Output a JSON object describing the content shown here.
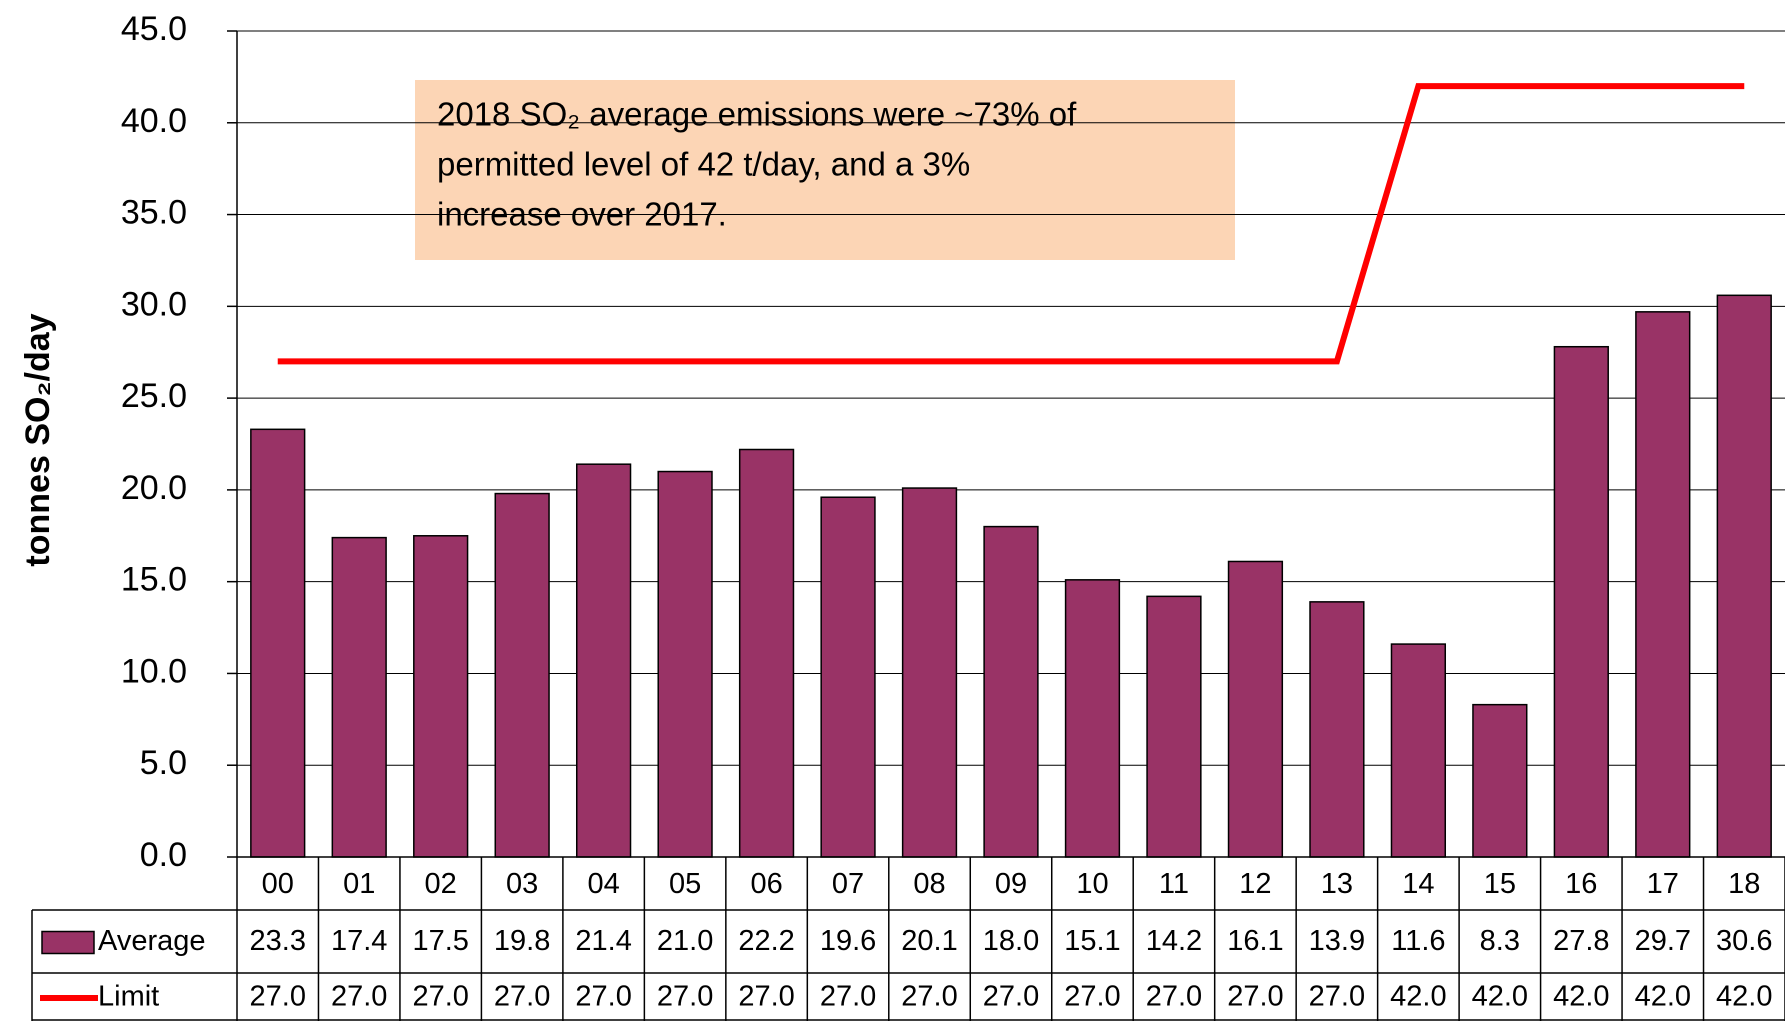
{
  "chart_data": {
    "type": "bar",
    "y_label": "tonnes SO₂/day",
    "annotation": [
      "2018 SO₂ average emissions were ~73% of",
      "permitted level of 42 t/day, and a 3%",
      "increase over 2017."
    ],
    "categories": [
      "00",
      "01",
      "02",
      "03",
      "04",
      "05",
      "06",
      "07",
      "08",
      "09",
      "10",
      "11",
      "12",
      "13",
      "14",
      "15",
      "16",
      "17",
      "18"
    ],
    "series": [
      {
        "name": "Average",
        "type": "bar",
        "color": "#993366",
        "values": [
          23.3,
          17.4,
          17.5,
          19.8,
          21.4,
          21.0,
          22.2,
          19.6,
          20.1,
          18.0,
          15.1,
          14.2,
          16.1,
          13.9,
          11.6,
          8.3,
          27.8,
          29.7,
          30.6
        ],
        "value_labels": [
          "23.3",
          "17.4",
          "17.5",
          "19.8",
          "21.4",
          "21.0",
          "22.2",
          "19.6",
          "20.1",
          "18.0",
          "15.1",
          "14.2",
          "16.1",
          "13.9",
          "11.6",
          "8.3",
          "27.8",
          "29.7",
          "30.6"
        ]
      },
      {
        "name": "Limit",
        "type": "line",
        "color": "#ff0000",
        "values": [
          27,
          27,
          27,
          27,
          27,
          27,
          27,
          27,
          27,
          27,
          27,
          27,
          27,
          27,
          42,
          42,
          42,
          42,
          42
        ],
        "value_labels": [
          "27.0",
          "27.0",
          "27.0",
          "27.0",
          "27.0",
          "27.0",
          "27.0",
          "27.0",
          "27.0",
          "27.0",
          "27.0",
          "27.0",
          "27.0",
          "27.0",
          "42.0",
          "42.0",
          "42.0",
          "42.0",
          "42.0"
        ]
      }
    ],
    "ylim": [
      0,
      45
    ],
    "yticks": [
      {
        "value": 0,
        "label": "0.0"
      },
      {
        "value": 5,
        "label": "5.0"
      },
      {
        "value": 10,
        "label": "10.0"
      },
      {
        "value": 15,
        "label": "15.0"
      },
      {
        "value": 20,
        "label": "20.0"
      },
      {
        "value": 25,
        "label": "25.0"
      },
      {
        "value": 30,
        "label": "30.0"
      },
      {
        "value": 35,
        "label": "35.0"
      },
      {
        "value": 40,
        "label": "40.0"
      },
      {
        "value": 45,
        "label": "45.0"
      }
    ],
    "grid": true
  }
}
